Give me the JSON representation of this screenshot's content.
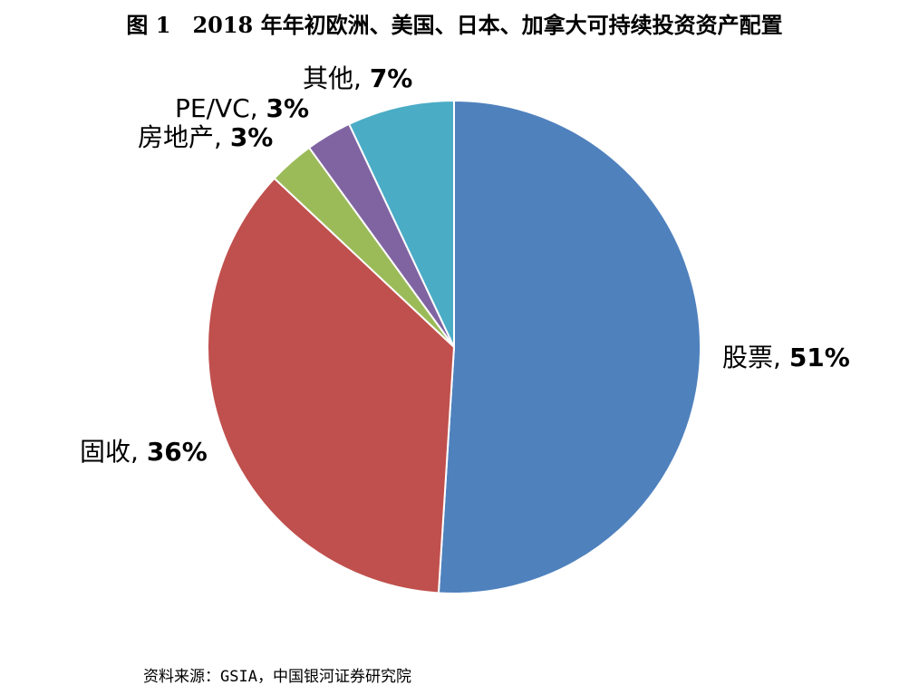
{
  "title": "图 1　2018 年年初欧洲、美国、日本、加拿大可持续投资资产配置",
  "source": "资料来源：GSIA，中国银河证券研究院",
  "chart_data": {
    "type": "pie",
    "title": "图 1　2018 年年初欧洲、美国、日本、加拿大可持续投资资产配置",
    "unit": "%",
    "slices": [
      {
        "label": "股票",
        "value": 51,
        "display": "51%",
        "color": "#4f81bd"
      },
      {
        "label": "固收",
        "value": 36,
        "display": "36%",
        "color": "#c0504d"
      },
      {
        "label": "房地产",
        "value": 3,
        "display": "3%",
        "color": "#9bbb59"
      },
      {
        "label": "PE/VC",
        "value": 3,
        "display": "3%",
        "color": "#8064a2"
      },
      {
        "label": "其他",
        "value": 7,
        "display": "7%",
        "color": "#4bacc6"
      }
    ]
  }
}
